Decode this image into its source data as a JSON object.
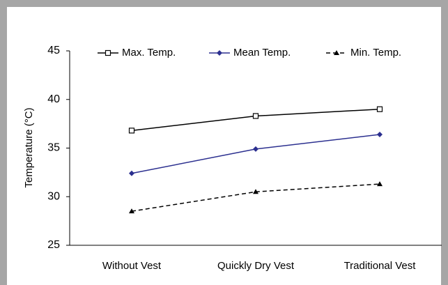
{
  "chart_data": {
    "type": "line",
    "y_label": "Temperature (°C)",
    "categories": [
      "Without Vest",
      "Quickly Dry Vest",
      "Traditional Vest"
    ],
    "series": [
      {
        "name": "Max. Temp.",
        "color": "#000000",
        "marker": "square",
        "dash": false,
        "values": [
          36.8,
          38.3,
          39.0
        ]
      },
      {
        "name": "Mean Temp.",
        "color": "#2b2f8f",
        "marker": "diamond",
        "dash": false,
        "values": [
          32.4,
          34.9,
          36.4
        ]
      },
      {
        "name": "Min. Temp.",
        "color": "#000000",
        "marker": "triangle",
        "dash": true,
        "values": [
          28.5,
          30.5,
          31.3
        ]
      }
    ],
    "ylim": [
      25,
      45
    ],
    "yticks": [
      25,
      30,
      35,
      40,
      45
    ],
    "grid": false,
    "legend": "top"
  }
}
